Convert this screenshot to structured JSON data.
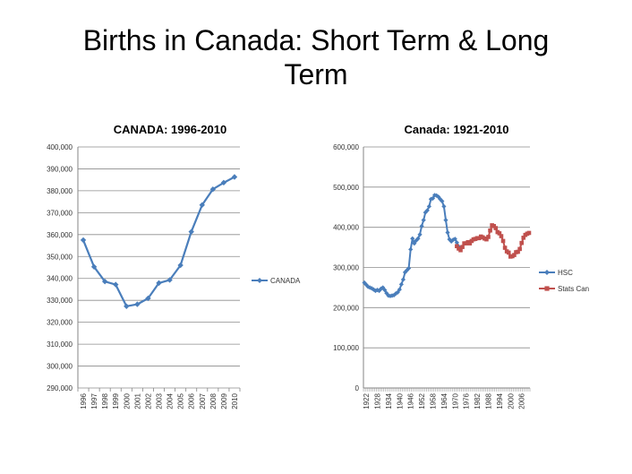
{
  "slide": {
    "title_line1": "Births in Canada: Short Term & Long",
    "title_line2": "Term"
  },
  "colors": {
    "blue": "#4A7EBB",
    "red": "#C0504D",
    "grid": "#8c8c8c",
    "axis": "#868686"
  },
  "chart_data": [
    {
      "type": "line",
      "title": "CANADA: 1996-2010",
      "ylim": [
        290000,
        400000
      ],
      "ystep": 10000,
      "yticks": [
        "290,000",
        "300,000",
        "310,000",
        "320,000",
        "330,000",
        "340,000",
        "350,000",
        "360,000",
        "370,000",
        "380,000",
        "390,000",
        "400,000"
      ],
      "categories": [
        "1996",
        "1997",
        "1998",
        "1999",
        "2000",
        "2001",
        "2002",
        "2003",
        "2004",
        "2005",
        "2006",
        "2007",
        "2008",
        "2009",
        "2010"
      ],
      "series": [
        {
          "name": "CANADA",
          "color": "#4A7EBB",
          "values": [
            357500,
            345300,
            338600,
            337200,
            327300,
            328200,
            330900,
            337900,
            339300,
            346000,
            361300,
            373500,
            380700,
            383700,
            386300
          ]
        }
      ],
      "legend": "right"
    },
    {
      "type": "line",
      "title": "Canada: 1921-2010",
      "ylim": [
        0,
        600000
      ],
      "ystep": 100000,
      "yticks": [
        "0",
        "100,000",
        "200,000",
        "300,000",
        "400,000",
        "500,000",
        "600,000"
      ],
      "xlim": [
        1921,
        2010
      ],
      "xticks": [
        "1922",
        "1928",
        "1934",
        "1940",
        "1946",
        "1952",
        "1958",
        "1964",
        "1970",
        "1976",
        "1982",
        "1988",
        "1994",
        "2000",
        "2006"
      ],
      "series": [
        {
          "name": "HSC",
          "color": "#4A7EBB",
          "x": [
            1921,
            1922,
            1923,
            1924,
            1925,
            1926,
            1927,
            1928,
            1929,
            1930,
            1931,
            1932,
            1933,
            1934,
            1935,
            1936,
            1937,
            1938,
            1939,
            1940,
            1941,
            1942,
            1943,
            1944,
            1945,
            1946,
            1947,
            1948,
            1949,
            1950,
            1951,
            1952,
            1953,
            1954,
            1955,
            1956,
            1957,
            1958,
            1959,
            1960,
            1961,
            1962,
            1963,
            1964,
            1965,
            1966,
            1967,
            1968,
            1969,
            1970,
            1971,
            1972
          ],
          "values": [
            262000,
            257000,
            252000,
            250000,
            248000,
            245000,
            242000,
            244000,
            242000,
            247000,
            250000,
            244000,
            236000,
            230000,
            229000,
            230000,
            231000,
            235000,
            238000,
            245000,
            258000,
            270000,
            288000,
            293000,
            298000,
            345000,
            372000,
            360000,
            367000,
            372000,
            382000,
            403000,
            418000,
            437000,
            442000,
            452000,
            470000,
            472000,
            480000,
            479000,
            476000,
            470000,
            465000,
            452000,
            418000,
            387000,
            370000,
            365000,
            369000,
            371000,
            362000,
            352000
          ]
        },
        {
          "name": "Stats Can",
          "color": "#C0504D",
          "x": [
            1971,
            1972,
            1973,
            1974,
            1975,
            1976,
            1977,
            1978,
            1979,
            1980,
            1981,
            1982,
            1983,
            1984,
            1985,
            1986,
            1987,
            1988,
            1989,
            1990,
            1991,
            1992,
            1993,
            1994,
            1995,
            1996,
            1997,
            1998,
            1999,
            2000,
            2001,
            2002,
            2003,
            2004,
            2005,
            2006,
            2007,
            2008,
            2009,
            2010
          ],
          "values": [
            353000,
            347000,
            343000,
            351000,
            360000,
            360000,
            363000,
            360000,
            366000,
            370000,
            371000,
            373000,
            373000,
            377000,
            375000,
            372000,
            370000,
            376000,
            392000,
            405000,
            403000,
            398000,
            388000,
            385000,
            378000,
            366000,
            349000,
            340000,
            337000,
            327000,
            328000,
            331000,
            338000,
            339000,
            346000,
            361000,
            374000,
            381000,
            384000,
            386000
          ]
        }
      ],
      "legend": "right"
    }
  ]
}
